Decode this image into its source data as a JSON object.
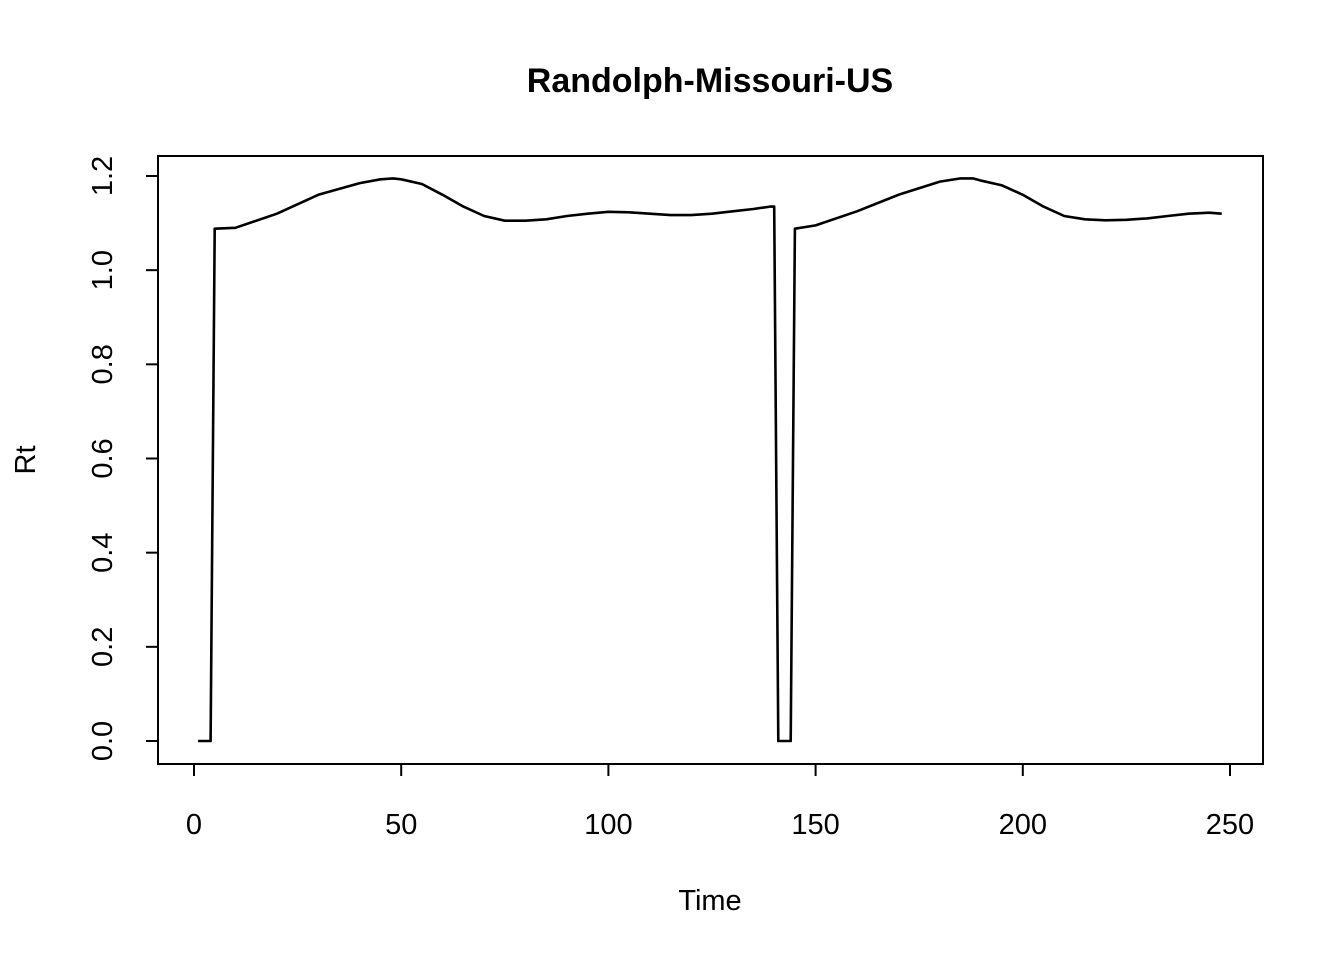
{
  "chart_data": {
    "type": "line",
    "title": "Randolph-Missouri-US",
    "xlabel": "Time",
    "ylabel": "Rt",
    "xlim": [
      0,
      250
    ],
    "ylim": [
      0,
      1.2
    ],
    "x_ticks": [
      0,
      50,
      100,
      150,
      200,
      250
    ],
    "y_ticks": [
      0.0,
      0.2,
      0.4,
      0.6,
      0.8,
      1.0,
      1.2
    ],
    "x_tick_labels": [
      "0",
      "50",
      "100",
      "150",
      "200",
      "250"
    ],
    "y_tick_labels": [
      "0.0",
      "0.2",
      "0.4",
      "0.6",
      "0.8",
      "1.0",
      "1.2"
    ],
    "grid": false,
    "series": [
      {
        "color": "#000000",
        "x": [
          1,
          2,
          3,
          4,
          5,
          10,
          20,
          30,
          40,
          45,
          48,
          50,
          55,
          60,
          65,
          70,
          75,
          80,
          85,
          90,
          95,
          100,
          105,
          110,
          115,
          120,
          125,
          130,
          135,
          139,
          140,
          141,
          142,
          143,
          144,
          145,
          150,
          160,
          170,
          180,
          185,
          188,
          190,
          195,
          200,
          205,
          210,
          215,
          220,
          225,
          230,
          235,
          240,
          245,
          248
        ],
        "y": [
          0,
          0,
          0,
          0,
          1.088,
          1.09,
          1.12,
          1.16,
          1.185,
          1.193,
          1.195,
          1.193,
          1.183,
          1.16,
          1.135,
          1.115,
          1.105,
          1.105,
          1.108,
          1.115,
          1.12,
          1.124,
          1.123,
          1.12,
          1.117,
          1.117,
          1.12,
          1.125,
          1.13,
          1.135,
          1.135,
          0,
          0,
          0,
          0,
          1.088,
          1.095,
          1.125,
          1.16,
          1.188,
          1.195,
          1.195,
          1.19,
          1.18,
          1.16,
          1.135,
          1.115,
          1.108,
          1.106,
          1.107,
          1.11,
          1.115,
          1.12,
          1.122,
          1.12
        ]
      }
    ]
  }
}
